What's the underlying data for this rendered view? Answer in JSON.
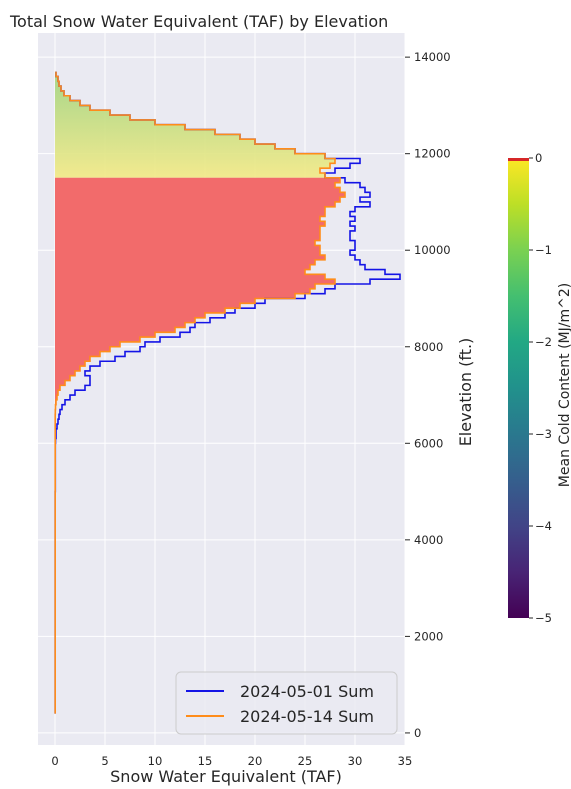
{
  "chart_data": {
    "type": "line",
    "title": "Total Snow Water Equivalent (TAF) by Elevation",
    "xlabel": "Snow Water Equivalent (TAF)",
    "ylabel": "Elevation (ft.)",
    "xlim": [
      -1.7,
      35.0
    ],
    "ylim": [
      -250,
      14500
    ],
    "xticks": [
      0,
      5,
      10,
      15,
      20,
      25,
      30,
      35
    ],
    "yticks": [
      0,
      2000,
      4000,
      6000,
      8000,
      10000,
      12000,
      14000
    ],
    "grid": true,
    "legend_position": "bottom-right",
    "series": [
      {
        "name": "2024-05-01 Sum",
        "color": "#1414e6",
        "elevation": [
          13700,
          13600,
          13500,
          13400,
          13300,
          13200,
          13100,
          13000,
          12900,
          12800,
          12700,
          12600,
          12500,
          12400,
          12300,
          12200,
          12100,
          12000,
          11900,
          11800,
          11700,
          11600,
          11500,
          11400,
          11300,
          11200,
          11100,
          11000,
          10900,
          10800,
          10700,
          10600,
          10500,
          10400,
          10300,
          10200,
          10100,
          10000,
          9900,
          9800,
          9700,
          9600,
          9500,
          9400,
          9300,
          9200,
          9100,
          9000,
          8900,
          8800,
          8700,
          8600,
          8500,
          8400,
          8300,
          8200,
          8100,
          8000,
          7900,
          7800,
          7700,
          7600,
          7500,
          7400,
          7300,
          7200,
          7100,
          7000,
          6900,
          6800,
          6700,
          6600,
          6500,
          6400,
          6300,
          6200,
          6100,
          6000,
          5000,
          4000,
          3000,
          2000,
          1000,
          400
        ],
        "swe": [
          0.1,
          0.3,
          0.4,
          0.6,
          0.9,
          1.5,
          2.5,
          3.5,
          5.5,
          7.5,
          10,
          13,
          16,
          18.5,
          20,
          22,
          24,
          27,
          30.5,
          29.5,
          28,
          27,
          29,
          30.5,
          31,
          31.5,
          30.5,
          31.5,
          30,
          29.5,
          30,
          29.5,
          30,
          29.5,
          29.5,
          30,
          30,
          29.5,
          30,
          30.5,
          31,
          33,
          34.5,
          31.5,
          28,
          27,
          25,
          21,
          20,
          18,
          17,
          15.5,
          14,
          13.5,
          12.5,
          10.5,
          9,
          8.5,
          7,
          6,
          4.5,
          3.5,
          3,
          3.5,
          3.5,
          3,
          2,
          1.5,
          1,
          0.7,
          0.5,
          0.4,
          0.3,
          0.2,
          0.1,
          0.1,
          0.05,
          0.03,
          0.02,
          0.02,
          0.02,
          0.02,
          0.02,
          0.02
        ]
      },
      {
        "name": "2024-05-14 Sum",
        "color": "#ff8c1a",
        "elevation": [
          13700,
          13600,
          13500,
          13400,
          13300,
          13200,
          13100,
          13000,
          12900,
          12800,
          12700,
          12600,
          12500,
          12400,
          12300,
          12200,
          12100,
          12000,
          11900,
          11800,
          11700,
          11600,
          11500,
          11400,
          11300,
          11200,
          11100,
          11000,
          10900,
          10800,
          10700,
          10600,
          10500,
          10400,
          10300,
          10200,
          10100,
          10000,
          9900,
          9800,
          9700,
          9600,
          9500,
          9400,
          9300,
          9200,
          9100,
          9000,
          8900,
          8800,
          8700,
          8600,
          8500,
          8400,
          8300,
          8200,
          8100,
          8000,
          7900,
          7800,
          7700,
          7600,
          7500,
          7400,
          7300,
          7200,
          7100,
          7000,
          6900,
          6800,
          6700,
          6600,
          6500,
          6400,
          6300,
          6200,
          6100,
          6000,
          5000,
          4000,
          3000,
          2000,
          1000,
          400
        ],
        "swe": [
          0.1,
          0.3,
          0.4,
          0.6,
          0.9,
          1.5,
          2.5,
          3.5,
          5.5,
          7.5,
          10,
          13,
          16,
          18.5,
          20,
          22,
          24,
          27,
          28,
          27.5,
          26.5,
          27,
          28.5,
          28,
          28.5,
          29,
          28.5,
          28,
          27,
          27,
          26.5,
          27,
          26.5,
          26.5,
          26.5,
          26,
          26.5,
          26.5,
          27,
          26,
          25.5,
          25,
          27,
          28,
          26,
          25.5,
          24,
          20,
          18.5,
          17,
          15,
          14,
          13,
          12,
          10,
          8.5,
          6.5,
          5.5,
          4.5,
          3.5,
          3,
          2.5,
          2,
          1.5,
          1,
          0.5,
          0.3,
          0.2,
          0.1,
          0.05,
          0.03,
          0.02,
          0.02,
          0.02,
          0.02,
          0.02,
          0.02,
          0.02,
          0.02,
          0.02,
          0.02,
          0.02,
          0.02,
          0.02
        ]
      }
    ],
    "colorbar": {
      "label": "Mean Cold Content (MJ/m^2)",
      "colormap": "viridis",
      "min": -5,
      "max": 0,
      "ticks": [
        0,
        -1,
        -2,
        -3,
        -4,
        -5
      ]
    },
    "fill_regions": [
      {
        "from_elevation": 11500,
        "to_elevation": 13700,
        "mean_cold_content": -0.3,
        "color": "#f0e678"
      },
      {
        "from_elevation": 6800,
        "to_elevation": 11500,
        "mean_cold_content": 0,
        "color": "#f26b6b"
      }
    ]
  }
}
